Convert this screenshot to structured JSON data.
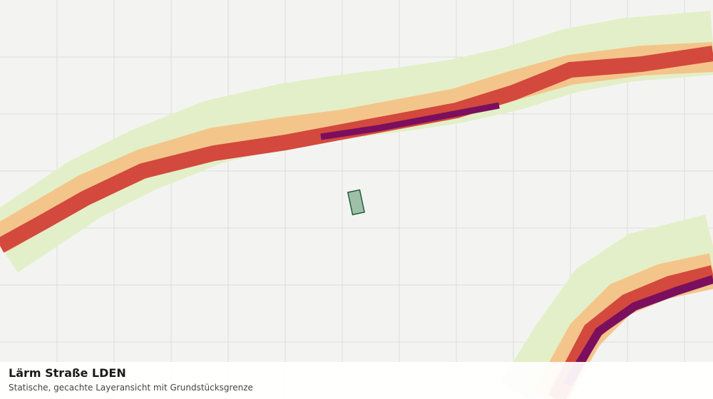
{
  "layer": {
    "title": "Lärm Straße LDEN",
    "subtitle": "Statische, gecachte Layeransicht mit Grundstücksgrenze"
  }
}
